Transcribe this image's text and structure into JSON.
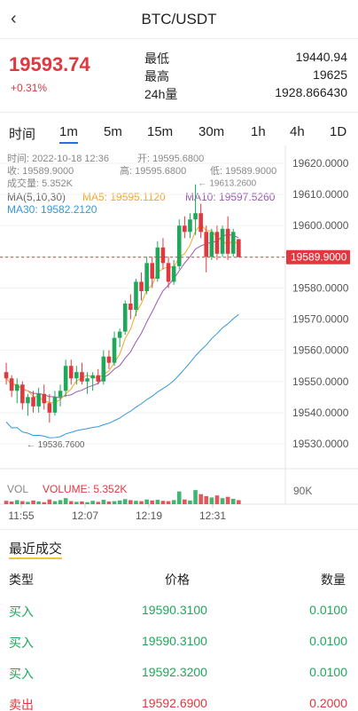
{
  "header": {
    "back_icon": "chevron-left-icon",
    "title": "BTC/USDT"
  },
  "ticker": {
    "last_price": "19593.74",
    "change_pct": "+0.31%",
    "stats": [
      {
        "label": "最低",
        "value": "19440.94"
      },
      {
        "label": "最高",
        "value": "19625"
      },
      {
        "label": "24h量",
        "value": "1928.866430"
      }
    ]
  },
  "tabs": [
    {
      "label": "时间",
      "active": false
    },
    {
      "label": "1m",
      "active": true
    },
    {
      "label": "5m",
      "active": false
    },
    {
      "label": "15m",
      "active": false
    },
    {
      "label": "30m",
      "active": false
    },
    {
      "label": "1h",
      "active": false
    },
    {
      "label": "4h",
      "active": false
    },
    {
      "label": "1D",
      "active": false
    }
  ],
  "candle_info": {
    "time": "时间: 2022-10-18 12:36",
    "open": "开: 19595.6800",
    "close": "收: 19589.9000",
    "high": "高: 19595.6800",
    "low": "低: 19589.9000",
    "volume": "成交量: 5.352K"
  },
  "ma": {
    "label": "MA(5,10,30)",
    "ma5": "MA5: 19595.1120",
    "ma10": "MA10: 19597.5260",
    "ma30": "MA30: 19582.2120"
  },
  "vol": {
    "label": "VOL",
    "volume": "VOLUME: 5.352K",
    "axis_label": "90K"
  },
  "colors": {
    "up": "#1fa85c",
    "down": "#e0383f",
    "ma5": "#f5a623",
    "ma10": "#9b59b6",
    "ma30": "#3498db"
  },
  "chart_data": {
    "type": "candlestick",
    "y_ticks": [
      "19620.0000",
      "19610.0000",
      "19600.0000",
      "19590.0000",
      "19580.0000",
      "19570.0000",
      "19560.0000",
      "19550.0000",
      "19540.0000",
      "19530.0000"
    ],
    "ylim": [
      19526,
      19624
    ],
    "x_ticks": [
      "11:55",
      "12:07",
      "12:19",
      "12:31"
    ],
    "current_price_label": "19589.9000",
    "current_price": 19589.9,
    "max_marker": {
      "label": "19613.2600",
      "value": 19613.26
    },
    "min_marker": {
      "label": "19536.7600",
      "value": 19536.76
    },
    "candles": [
      {
        "o": 19553,
        "h": 19556,
        "l": 19549,
        "c": 19551
      },
      {
        "o": 19551,
        "h": 19552,
        "l": 19545,
        "c": 19547
      },
      {
        "o": 19547,
        "h": 19551,
        "l": 19543,
        "c": 19549
      },
      {
        "o": 19549,
        "h": 19550,
        "l": 19541,
        "c": 19543
      },
      {
        "o": 19543,
        "h": 19546,
        "l": 19539,
        "c": 19545
      },
      {
        "o": 19545,
        "h": 19547,
        "l": 19540,
        "c": 19542
      },
      {
        "o": 19542,
        "h": 19548,
        "l": 19540,
        "c": 19546
      },
      {
        "o": 19546,
        "h": 19549,
        "l": 19541,
        "c": 19543
      },
      {
        "o": 19543,
        "h": 19546,
        "l": 19536.76,
        "c": 19540
      },
      {
        "o": 19540,
        "h": 19547,
        "l": 19539,
        "c": 19545
      },
      {
        "o": 19545,
        "h": 19549,
        "l": 19542,
        "c": 19547
      },
      {
        "o": 19547,
        "h": 19557,
        "l": 19545,
        "c": 19555
      },
      {
        "o": 19555,
        "h": 19557,
        "l": 19549,
        "c": 19551
      },
      {
        "o": 19551,
        "h": 19555,
        "l": 19549,
        "c": 19553
      },
      {
        "o": 19553,
        "h": 19556,
        "l": 19549,
        "c": 19550
      },
      {
        "o": 19550,
        "h": 19553,
        "l": 19546,
        "c": 19551
      },
      {
        "o": 19551,
        "h": 19553,
        "l": 19547,
        "c": 19552
      },
      {
        "o": 19552,
        "h": 19554,
        "l": 19549,
        "c": 19550
      },
      {
        "o": 19550,
        "h": 19560,
        "l": 19549,
        "c": 19558
      },
      {
        "o": 19558,
        "h": 19560,
        "l": 19554,
        "c": 19556
      },
      {
        "o": 19556,
        "h": 19566,
        "l": 19555,
        "c": 19564
      },
      {
        "o": 19564,
        "h": 19567,
        "l": 19561,
        "c": 19566
      },
      {
        "o": 19566,
        "h": 19576,
        "l": 19565,
        "c": 19575
      },
      {
        "o": 19575,
        "h": 19578,
        "l": 19570,
        "c": 19573
      },
      {
        "o": 19573,
        "h": 19583,
        "l": 19571,
        "c": 19582
      },
      {
        "o": 19582,
        "h": 19585,
        "l": 19576,
        "c": 19579
      },
      {
        "o": 19579,
        "h": 19590,
        "l": 19578,
        "c": 19588
      },
      {
        "o": 19588,
        "h": 19590,
        "l": 19580,
        "c": 19583
      },
      {
        "o": 19583,
        "h": 19595,
        "l": 19582,
        "c": 19593
      },
      {
        "o": 19593,
        "h": 19596,
        "l": 19586,
        "c": 19588
      },
      {
        "o": 19588,
        "h": 19590,
        "l": 19580,
        "c": 19582
      },
      {
        "o": 19582,
        "h": 19589,
        "l": 19581,
        "c": 19587
      },
      {
        "o": 19587,
        "h": 19602,
        "l": 19586,
        "c": 19600
      },
      {
        "o": 19600,
        "h": 19603,
        "l": 19596,
        "c": 19598
      },
      {
        "o": 19598,
        "h": 19604,
        "l": 19596,
        "c": 19602
      },
      {
        "o": 19602,
        "h": 19613.26,
        "l": 19597,
        "c": 19604
      },
      {
        "o": 19604,
        "h": 19607,
        "l": 19596,
        "c": 19598
      },
      {
        "o": 19598,
        "h": 19600,
        "l": 19585,
        "c": 19590
      },
      {
        "o": 19590,
        "h": 19599,
        "l": 19589,
        "c": 19598
      },
      {
        "o": 19598,
        "h": 19600,
        "l": 19589,
        "c": 19591
      },
      {
        "o": 19591,
        "h": 19600,
        "l": 19590,
        "c": 19599
      },
      {
        "o": 19599,
        "h": 19603,
        "l": 19589,
        "c": 19591
      },
      {
        "o": 19591,
        "h": 19599,
        "l": 19590,
        "c": 19598
      },
      {
        "o": 19595.68,
        "h": 19595.68,
        "l": 19589.9,
        "c": 19589.9
      }
    ],
    "volumes": [
      10,
      8,
      12,
      9,
      7,
      11,
      8,
      6,
      14,
      9,
      12,
      18,
      9,
      7,
      8,
      6,
      10,
      7,
      13,
      8,
      9,
      11,
      15,
      12,
      10,
      9,
      14,
      11,
      13,
      10,
      9,
      12,
      38,
      14,
      11,
      42,
      30,
      24,
      20,
      26,
      18,
      22,
      16,
      12
    ]
  },
  "recent_trades": {
    "title": "最近成交",
    "headers": {
      "type": "类型",
      "price": "价格",
      "qty": "数量"
    },
    "rows": [
      {
        "type": "买入",
        "price": "19590.3100",
        "qty": "0.0100",
        "side": "buy"
      },
      {
        "type": "买入",
        "price": "19590.3100",
        "qty": "0.0100",
        "side": "buy"
      },
      {
        "type": "买入",
        "price": "19592.3200",
        "qty": "0.0100",
        "side": "buy"
      },
      {
        "type": "卖出",
        "price": "19592.6900",
        "qty": "0.2000",
        "side": "sell"
      }
    ]
  }
}
